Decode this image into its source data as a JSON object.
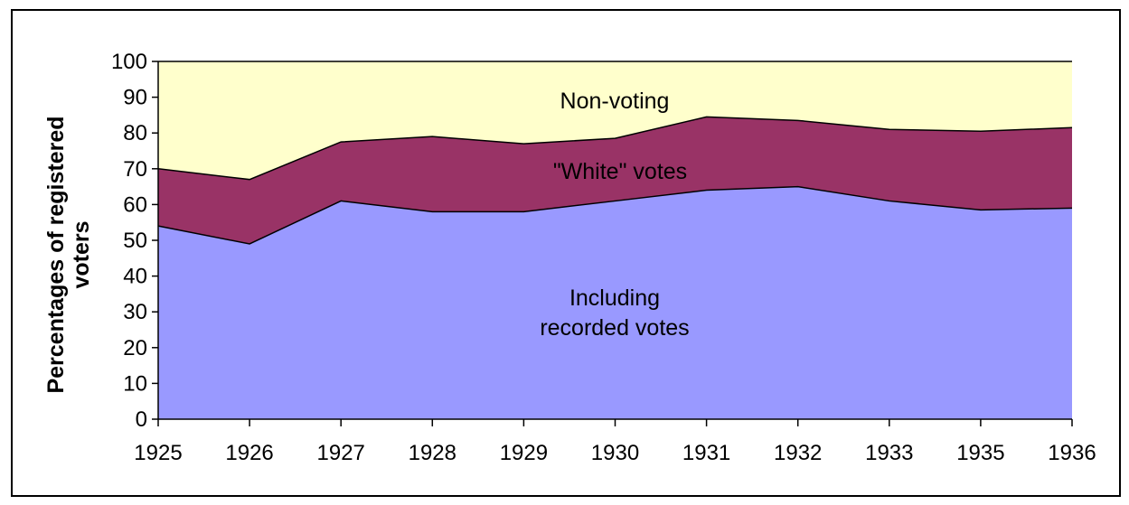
{
  "chart_data": {
    "type": "area",
    "stacked": true,
    "x": [
      "1925",
      "1926",
      "1927",
      "1928",
      "1929",
      "1930",
      "1931",
      "1932",
      "1933",
      "1935",
      "1936"
    ],
    "ylabel_lines": [
      "Percentages of registered",
      "voters"
    ],
    "ylim": [
      0,
      100
    ],
    "yticks": [
      0,
      10,
      20,
      30,
      40,
      50,
      60,
      70,
      80,
      90,
      100
    ],
    "grid": false,
    "series": [
      {
        "name": "Including recorded votes",
        "label_lines": [
          "Including",
          "recorded votes"
        ],
        "color": "#9999ff",
        "values": [
          54,
          49,
          61,
          58,
          58,
          61,
          64,
          65,
          61,
          58.5,
          59
        ]
      },
      {
        "name": "\"White\" votes",
        "label_lines": [
          "\"White\" votes"
        ],
        "color": "#993366",
        "values": [
          16,
          18,
          16.5,
          21,
          19,
          17.5,
          20.5,
          18.5,
          20,
          22,
          22.5
        ]
      },
      {
        "name": "Non-voting",
        "label_lines": [
          "Non-voting"
        ],
        "color": "#ffffcc",
        "values": [
          30,
          33,
          22.5,
          21,
          23,
          21.5,
          15.5,
          16.5,
          19,
          19.5,
          18.5
        ]
      }
    ]
  }
}
